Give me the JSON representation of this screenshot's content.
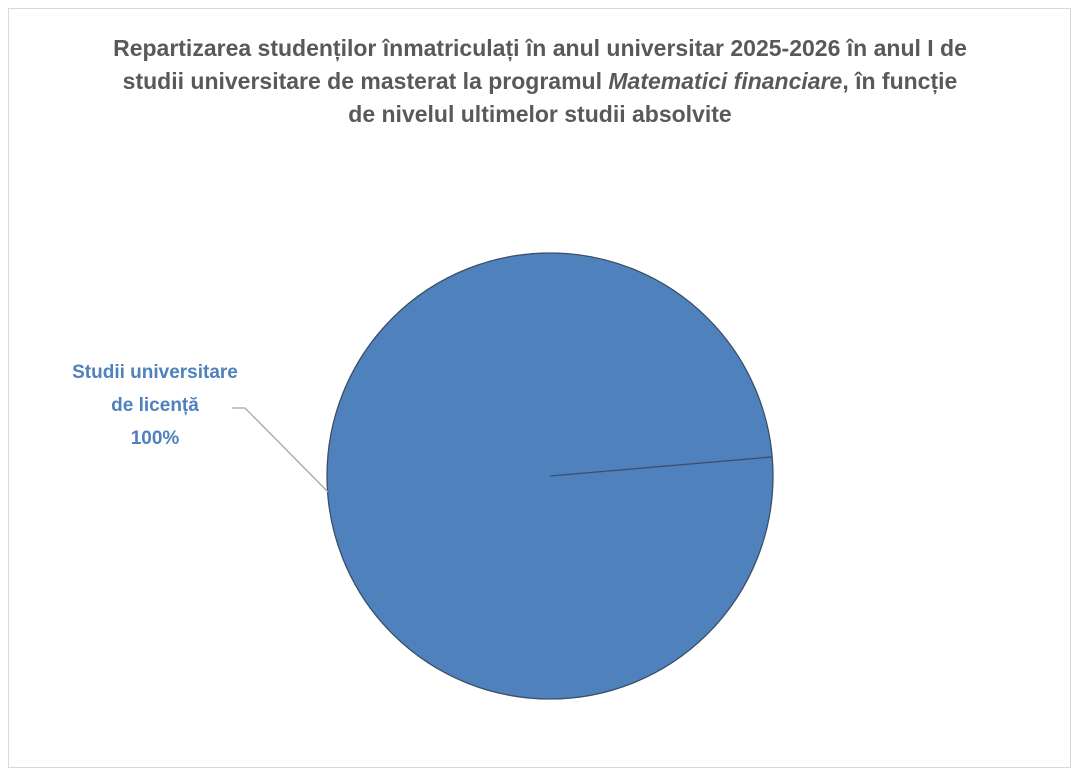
{
  "chart_data": {
    "type": "pie",
    "title": [
      "Repartizarea studenților înmatriculați în anul universitar 2025-2026 în anul I de studii universitare de masterat la programul ",
      "Matematici financiare",
      ", în funcție de nivelul ultimelor studii absolvite"
    ],
    "categories": [
      "Studii universitare de licență"
    ],
    "values": [
      100
    ],
    "value_labels": [
      "100%"
    ],
    "colors": [
      "#4f81bd"
    ]
  }
}
